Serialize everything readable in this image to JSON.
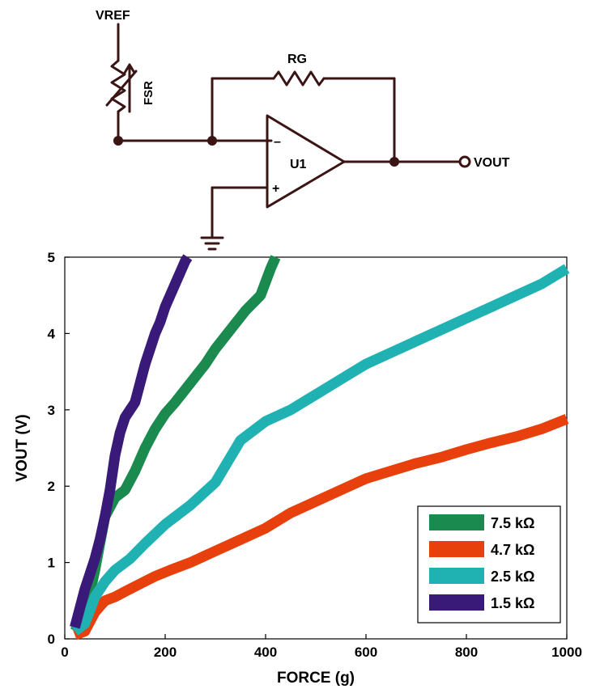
{
  "circuit": {
    "vref_label": "VREF",
    "fsr_label": "FSR",
    "rg_label": "RG",
    "opamp_label": "U1",
    "minus_label": "–",
    "plus_label": "+",
    "vout_label": "VOUT"
  },
  "chart_data": {
    "type": "line",
    "xlabel": "FORCE (g)",
    "ylabel": "VOUT (V)",
    "xlim": [
      0,
      1000
    ],
    "ylim": [
      0,
      5
    ],
    "x_ticks": [
      0,
      200,
      400,
      600,
      800,
      1000
    ],
    "y_ticks": [
      0,
      1,
      2,
      3,
      4,
      5
    ],
    "grid": false,
    "legend_position": "bottom-right",
    "series": [
      {
        "name": "7.5 kΩ",
        "color": "#1a8a4e",
        "x": [
          20,
          40,
          60,
          80,
          100,
          120,
          140,
          160,
          180,
          200,
          220,
          250,
          280,
          300,
          330,
          360,
          390,
          410,
          420
        ],
        "y": [
          0.1,
          0.3,
          0.9,
          1.6,
          1.85,
          1.95,
          2.2,
          2.5,
          2.75,
          2.95,
          3.1,
          3.35,
          3.6,
          3.8,
          4.05,
          4.3,
          4.5,
          4.85,
          5.0
        ]
      },
      {
        "name": "4.7 kΩ",
        "color": "#e8400c",
        "x": [
          20,
          40,
          60,
          80,
          100,
          120,
          150,
          180,
          210,
          250,
          300,
          350,
          400,
          450,
          500,
          550,
          600,
          650,
          700,
          750,
          800,
          850,
          900,
          950,
          1000
        ],
        "y": [
          0.05,
          0.1,
          0.35,
          0.5,
          0.55,
          0.62,
          0.72,
          0.82,
          0.9,
          1.0,
          1.15,
          1.3,
          1.45,
          1.65,
          1.8,
          1.95,
          2.1,
          2.2,
          2.3,
          2.38,
          2.48,
          2.57,
          2.65,
          2.75,
          2.88
        ]
      },
      {
        "name": "2.5 kΩ",
        "color": "#20b2b2",
        "x": [
          20,
          40,
          60,
          80,
          100,
          130,
          160,
          200,
          250,
          300,
          350,
          400,
          450,
          500,
          550,
          600,
          650,
          700,
          750,
          800,
          850,
          900,
          950,
          1000
        ],
        "y": [
          0.1,
          0.2,
          0.55,
          0.75,
          0.9,
          1.05,
          1.25,
          1.5,
          1.75,
          2.05,
          2.6,
          2.85,
          3.0,
          3.2,
          3.4,
          3.6,
          3.75,
          3.9,
          4.05,
          4.2,
          4.35,
          4.5,
          4.65,
          4.85
        ]
      },
      {
        "name": "1.5 kΩ",
        "color": "#3a1a78",
        "x": [
          20,
          30,
          40,
          50,
          60,
          70,
          80,
          90,
          100,
          110,
          120,
          130,
          140,
          150,
          160,
          170,
          180,
          190,
          200,
          210,
          220,
          230,
          240,
          245
        ],
        "y": [
          0.15,
          0.4,
          0.65,
          0.85,
          1.05,
          1.3,
          1.6,
          1.95,
          2.4,
          2.7,
          2.9,
          3.0,
          3.1,
          3.35,
          3.6,
          3.8,
          4.0,
          4.15,
          4.35,
          4.5,
          4.65,
          4.8,
          4.95,
          5.0
        ]
      }
    ]
  }
}
